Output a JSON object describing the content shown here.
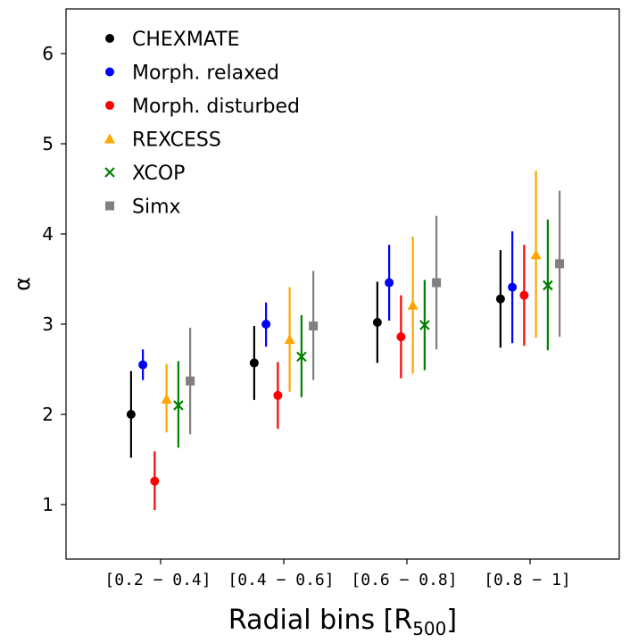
{
  "chart_data": {
    "type": "scatter",
    "title": "",
    "xlabel": "Radial bins [R",
    "xlabel_sub": "500",
    "xlabel_close": "]",
    "ylabel": "α",
    "ylim": [
      0.4,
      6.5
    ],
    "yticks": [
      1,
      2,
      3,
      4,
      5,
      6
    ],
    "categories": [
      "[0.2 − 0.4]",
      "[0.4 − 0.6]",
      "[0.6 − 0.8]",
      "[0.8 − 1]"
    ],
    "legend_position": "top-left",
    "series": [
      {
        "name": "CHEXMATE",
        "color": "#000000",
        "marker": "circle",
        "offset": -0.3,
        "values": [
          2.0,
          2.57,
          3.02,
          3.28
        ],
        "low": [
          1.52,
          2.16,
          2.57,
          2.74
        ],
        "high": [
          2.48,
          2.98,
          3.47,
          3.82
        ]
      },
      {
        "name": "Morph. relaxed",
        "color": "#0000ff",
        "marker": "circle",
        "offset": -0.18,
        "values": [
          2.55,
          3.0,
          3.46,
          3.41
        ],
        "low": [
          2.38,
          2.75,
          3.04,
          2.79
        ],
        "high": [
          2.72,
          3.24,
          3.88,
          4.03
        ]
      },
      {
        "name": "Morph. disturbed",
        "color": "#ff0000",
        "marker": "circle",
        "offset": -0.06,
        "values": [
          1.26,
          2.21,
          2.86,
          3.32
        ],
        "low": [
          0.94,
          1.84,
          2.4,
          2.76
        ],
        "high": [
          1.59,
          2.58,
          3.32,
          3.88
        ]
      },
      {
        "name": "REXCESS",
        "color": "#ffa500",
        "marker": "triangle",
        "offset": 0.06,
        "values": [
          2.17,
          2.83,
          3.21,
          3.77
        ],
        "low": [
          1.8,
          2.25,
          2.45,
          2.85
        ],
        "high": [
          2.56,
          3.41,
          3.97,
          4.7
        ]
      },
      {
        "name": "XCOP",
        "color": "#008000",
        "marker": "x",
        "offset": 0.18,
        "values": [
          2.1,
          2.64,
          2.99,
          3.43
        ],
        "low": [
          1.63,
          2.19,
          2.49,
          2.71
        ],
        "high": [
          2.59,
          3.1,
          3.49,
          4.16
        ]
      },
      {
        "name": "Simx",
        "color": "#808080",
        "marker": "square",
        "offset": 0.3,
        "values": [
          2.37,
          2.98,
          3.46,
          3.67
        ],
        "low": [
          1.78,
          2.38,
          2.72,
          2.86
        ],
        "high": [
          2.96,
          3.59,
          4.2,
          4.48
        ]
      }
    ]
  }
}
